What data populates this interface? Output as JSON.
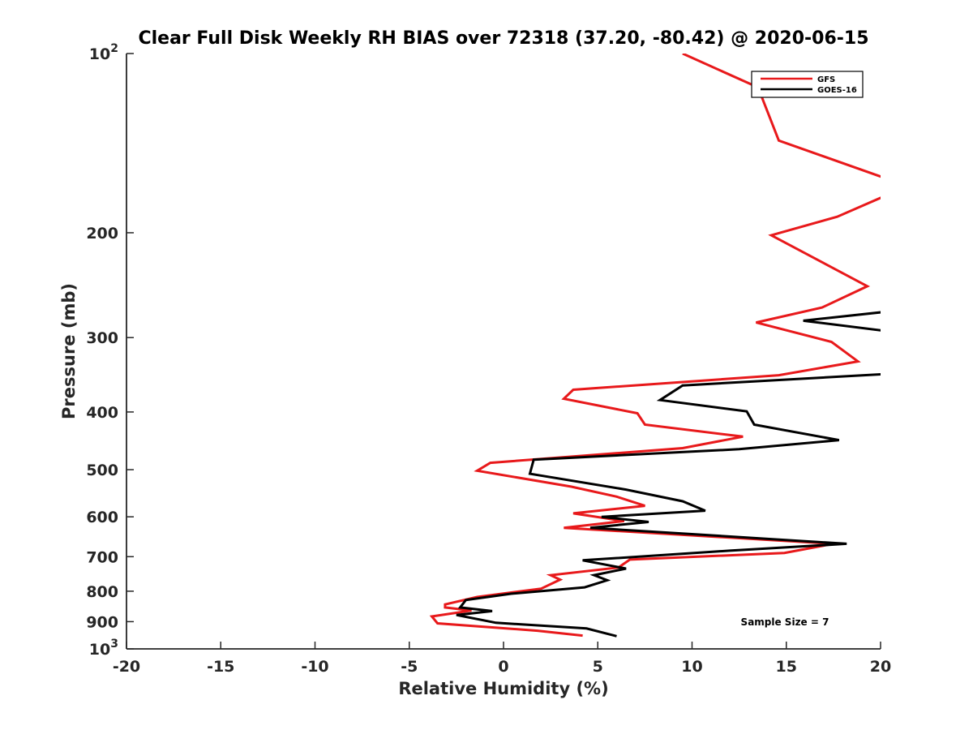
{
  "chart_data": {
    "type": "line",
    "title": "Clear Full Disk Weekly RH BIAS over 72318 (37.20, -80.42) @ 2020-06-15",
    "xlabel": "Relative Humidity (%)",
    "ylabel": "Pressure (mb)",
    "xlim": [
      -20,
      20
    ],
    "ylim": [
      100,
      1000
    ],
    "yscale": "log",
    "y_reversed": true,
    "grid": false,
    "legend_position": "top-right",
    "x_ticks": [
      "-20",
      "-15",
      "-10",
      "-5",
      "0",
      "5",
      "10",
      "15",
      "20"
    ],
    "y_ticks": [
      {
        "value": 100,
        "base": "10",
        "exp": "2"
      },
      {
        "value": 200,
        "base": "200",
        "exp": ""
      },
      {
        "value": 300,
        "base": "300",
        "exp": ""
      },
      {
        "value": 400,
        "base": "400",
        "exp": ""
      },
      {
        "value": 500,
        "base": "500",
        "exp": ""
      },
      {
        "value": 600,
        "base": "600",
        "exp": ""
      },
      {
        "value": 700,
        "base": "700",
        "exp": ""
      },
      {
        "value": 800,
        "base": "800",
        "exp": ""
      },
      {
        "value": 900,
        "base": "900",
        "exp": ""
      },
      {
        "value": 1000,
        "base": "10",
        "exp": "3"
      }
    ],
    "annotation": "Sample Size = 7",
    "series": [
      {
        "name": "GFS",
        "color": "#e8191b",
        "points": [
          [
            9.5,
            100
          ],
          [
            13.5,
            114
          ],
          [
            14.6,
            140
          ],
          [
            20.5,
            163
          ],
          [
            20.5,
            172
          ],
          [
            17.7,
            188
          ],
          [
            14.2,
            202
          ],
          [
            19.3,
            246
          ],
          [
            16.9,
            267
          ],
          [
            13.4,
            283
          ],
          [
            17.4,
            305
          ],
          [
            18.8,
            329
          ],
          [
            14.6,
            347
          ],
          [
            3.7,
            367
          ],
          [
            3.2,
            380
          ],
          [
            7.1,
            402
          ],
          [
            7.5,
            420
          ],
          [
            12.7,
            440
          ],
          [
            9.5,
            460
          ],
          [
            -0.7,
            487
          ],
          [
            -1.4,
            502
          ],
          [
            3.6,
            534
          ],
          [
            6.0,
            555
          ],
          [
            7.5,
            575
          ],
          [
            3.7,
            592
          ],
          [
            6.4,
            610
          ],
          [
            3.2,
            626
          ],
          [
            17.5,
            666
          ],
          [
            14.9,
            690
          ],
          [
            6.7,
            708
          ],
          [
            6.1,
            730
          ],
          [
            2.5,
            752
          ],
          [
            3.0,
            765
          ],
          [
            2.0,
            792
          ],
          [
            -1.4,
            818
          ],
          [
            -3.1,
            842
          ],
          [
            -3.1,
            852
          ],
          [
            -1.7,
            862
          ],
          [
            -3.8,
            882
          ],
          [
            -3.5,
            906
          ],
          [
            1.8,
            932
          ],
          [
            4.2,
            950
          ]
        ]
      },
      {
        "name": "GOES-16",
        "color": "#000000",
        "points": [
          [
            20.5,
            271
          ],
          [
            15.9,
            281
          ],
          [
            20.5,
            293
          ],
          [
            20.5,
            345
          ],
          [
            9.5,
            361
          ],
          [
            8.3,
            382
          ],
          [
            12.9,
            399
          ],
          [
            13.3,
            420
          ],
          [
            17.8,
            446
          ],
          [
            12.5,
            462
          ],
          [
            1.6,
            481
          ],
          [
            1.4,
            508
          ],
          [
            6.5,
            540
          ],
          [
            9.5,
            565
          ],
          [
            10.7,
            586
          ],
          [
            5.2,
            600
          ],
          [
            7.7,
            612
          ],
          [
            4.6,
            626
          ],
          [
            18.2,
            666
          ],
          [
            12.0,
            684
          ],
          [
            4.2,
            710
          ],
          [
            6.5,
            733
          ],
          [
            4.8,
            752
          ],
          [
            5.5,
            767
          ],
          [
            4.3,
            788
          ],
          [
            0.4,
            808
          ],
          [
            -2.0,
            828
          ],
          [
            -2.3,
            852
          ],
          [
            -0.6,
            864
          ],
          [
            -2.5,
            877
          ],
          [
            -0.4,
            904
          ],
          [
            4.4,
            924
          ],
          [
            6.0,
            952
          ]
        ]
      }
    ]
  }
}
